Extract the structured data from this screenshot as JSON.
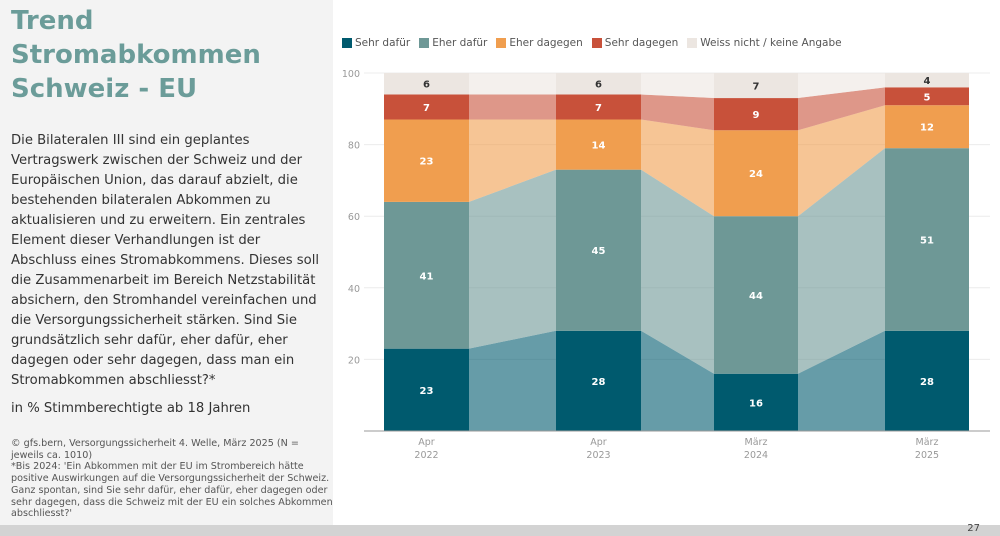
{
  "title": "Trend Stromabkommen Schweiz - EU",
  "question": "Die Bilateralen III sind ein geplantes Vertragswerk zwischen der Schweiz und der Europäischen Union, das darauf abzielt, die bestehenden bilateralen Abkommen zu aktualisieren und zu erweitern. Ein zentrales Element dieser Verhandlungen ist der Abschluss eines Stromabkommens. Dieses soll die Zusammenarbeit im Bereich Netzstabilität absichern, den Stromhandel vereinfachen und die Versorgungssicherheit stärken. Sind Sie grundsätzlich sehr dafür, eher dafür, eher dagegen oder sehr dagegen, dass man ein Stromabkommen abschliesst?*",
  "unit": "in % Stimmberechtigte ab 18 Jahren",
  "source": "© gfs.bern, Versorgungssicherheit 4. Welle, März 2025 (N = jeweils ca. 1010)",
  "footnote": "*Bis 2024: 'Ein Abkommen mit der EU im Strombereich hätte positive Auswirkungen auf die Versorgungssicherheit der Schweiz. Ganz spontan, sind Sie sehr dafür, eher dafür, eher dagegen oder sehr dagegen, dass die Schweiz mit der EU ein solches Abkommen abschliesst?'",
  "page_number": "27",
  "chart_data": {
    "type": "bar",
    "stacked": true,
    "categories": [
      [
        "Apr",
        "2022"
      ],
      [
        "Apr",
        "2023"
      ],
      [
        "März",
        "2024"
      ],
      [
        "März",
        "2025"
      ]
    ],
    "series": [
      {
        "name": "Sehr dafür",
        "color": "#005a6e",
        "values": [
          23,
          28,
          16,
          28
        ]
      },
      {
        "name": "Eher dafür",
        "color": "#6e9896",
        "values": [
          41,
          45,
          44,
          51
        ]
      },
      {
        "name": "Eher dagegen",
        "color": "#f09e4f",
        "values": [
          23,
          14,
          24,
          12
        ]
      },
      {
        "name": "Sehr dagegen",
        "color": "#c8513a",
        "values": [
          7,
          7,
          9,
          5
        ]
      },
      {
        "name": "Weiss nicht / keine Angabe",
        "color": "#ece6e1",
        "values": [
          6,
          6,
          7,
          4
        ]
      }
    ],
    "ylim": [
      0,
      100
    ],
    "yticks": [
      20,
      40,
      60,
      80,
      100
    ],
    "grid": true,
    "legend": "top"
  }
}
